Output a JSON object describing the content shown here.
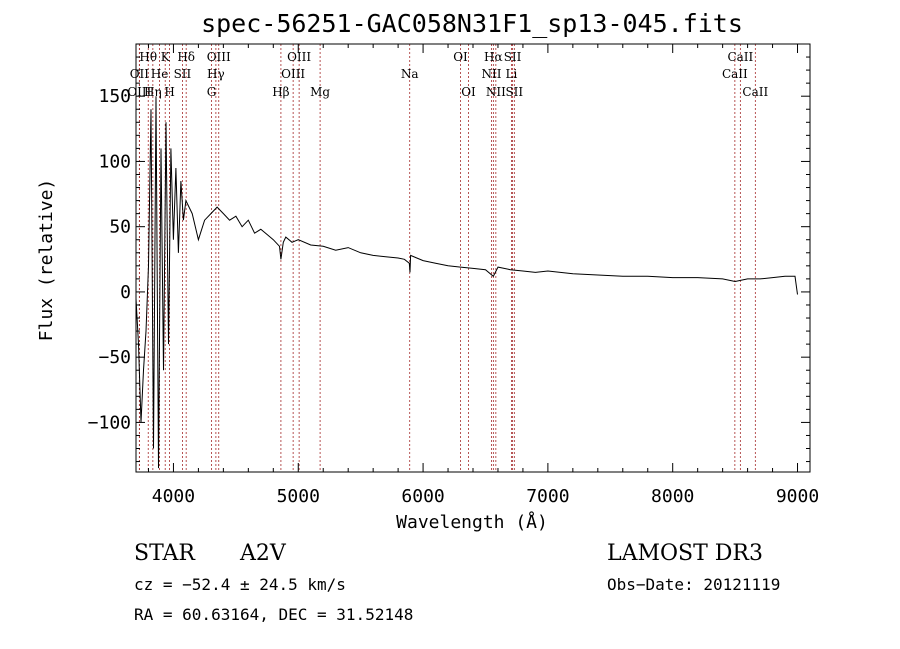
{
  "chart_data": {
    "type": "line",
    "title": "spec-56251-GAC058N31F1_sp13-045.fits",
    "xlabel": "Wavelength (Å)",
    "ylabel": "Flux (relative)",
    "xlim": [
      3700,
      9100
    ],
    "ylim": [
      -138,
      190
    ],
    "xticks": [
      4000,
      5000,
      6000,
      7000,
      8000,
      9000
    ],
    "yticks": [
      -100,
      -50,
      0,
      50,
      100,
      150
    ],
    "xtick_labels": [
      "4000",
      "5000",
      "6000",
      "7000",
      "8000",
      "9000"
    ],
    "ytick_labels": [
      "−100",
      "−50",
      "0",
      "50",
      "100",
      "150"
    ],
    "spectrum": {
      "x": [
        3700,
        3720,
        3740,
        3760,
        3780,
        3800,
        3820,
        3840,
        3860,
        3880,
        3900,
        3920,
        3940,
        3960,
        3980,
        4000,
        4020,
        4040,
        4060,
        4080,
        4100,
        4150,
        4200,
        4250,
        4300,
        4350,
        4400,
        4450,
        4500,
        4550,
        4600,
        4650,
        4700,
        4750,
        4800,
        4850,
        4861,
        4880,
        4900,
        4950,
        5000,
        5100,
        5200,
        5300,
        5400,
        5500,
        5600,
        5700,
        5800,
        5850,
        5890,
        5895,
        5900,
        5950,
        6000,
        6100,
        6200,
        6300,
        6400,
        6500,
        6563,
        6600,
        6700,
        6800,
        6900,
        7000,
        7200,
        7400,
        7600,
        7800,
        8000,
        8200,
        8400,
        8500,
        8600,
        8700,
        8800,
        8900,
        8950,
        8980,
        9000
      ],
      "y": [
        -5,
        -40,
        -100,
        -60,
        -30,
        20,
        140,
        -120,
        150,
        -135,
        110,
        -60,
        130,
        -40,
        110,
        40,
        95,
        30,
        85,
        55,
        70,
        60,
        40,
        55,
        60,
        65,
        60,
        55,
        58,
        50,
        55,
        45,
        48,
        44,
        40,
        35,
        25,
        38,
        42,
        38,
        40,
        36,
        35,
        32,
        34,
        30,
        28,
        27,
        26,
        25,
        22,
        15,
        28,
        26,
        24,
        22,
        20,
        19,
        18,
        17,
        12,
        19,
        17,
        16,
        15,
        16,
        14,
        13,
        12,
        12,
        11,
        11,
        10,
        8,
        10,
        10,
        11,
        12,
        12,
        12,
        -2
      ]
    },
    "lines": [
      {
        "label": "Hθ",
        "x": 3798,
        "row": 1
      },
      {
        "label": "K",
        "x": 3934,
        "row": 1
      },
      {
        "label": "Hδ",
        "x": 4102,
        "row": 1
      },
      {
        "label": "OIII",
        "x": 4363,
        "row": 1
      },
      {
        "label": "OIII",
        "x": 5007,
        "row": 1
      },
      {
        "label": "OI",
        "x": 6300,
        "row": 1
      },
      {
        "label": "Hα",
        "x": 6563,
        "row": 1
      },
      {
        "label": "SII",
        "x": 6717,
        "row": 1
      },
      {
        "label": "CaII",
        "x": 8542,
        "row": 1
      },
      {
        "label": "OII",
        "x": 3727,
        "row": 2
      },
      {
        "label": "He",
        "x": 3889,
        "row": 2
      },
      {
        "label": "SII",
        "x": 4072,
        "row": 2
      },
      {
        "label": "Hγ",
        "x": 4340,
        "row": 2
      },
      {
        "label": "OIII",
        "x": 4959,
        "row": 2
      },
      {
        "label": "Na",
        "x": 5893,
        "row": 2
      },
      {
        "label": "NII",
        "x": 6548,
        "row": 2
      },
      {
        "label": "Li",
        "x": 6708,
        "row": 2
      },
      {
        "label": "CaII",
        "x": 8498,
        "row": 2
      },
      {
        "label": "OIII",
        "x": 3727,
        "row": 3
      },
      {
        "label": "Hη",
        "x": 3835,
        "row": 3
      },
      {
        "label": "H",
        "x": 3969,
        "row": 3
      },
      {
        "label": "G",
        "x": 4305,
        "row": 3
      },
      {
        "label": "Hβ",
        "x": 4861,
        "row": 3
      },
      {
        "label": "Mg",
        "x": 5175,
        "row": 3
      },
      {
        "label": "OI",
        "x": 6364,
        "row": 3
      },
      {
        "label": "NII",
        "x": 6583,
        "row": 3
      },
      {
        "label": "SII",
        "x": 6731,
        "row": 3
      },
      {
        "label": "CaII",
        "x": 8662,
        "row": 3
      }
    ]
  },
  "info": {
    "object_class": "STAR",
    "subclass": "A2V",
    "survey": "LAMOST DR3",
    "cz": "cz = −52.4 ± 24.5 km/s",
    "obs_date": "Obs−Date: 20121119",
    "coords": "RA =  60.63164, DEC =  31.52148"
  }
}
